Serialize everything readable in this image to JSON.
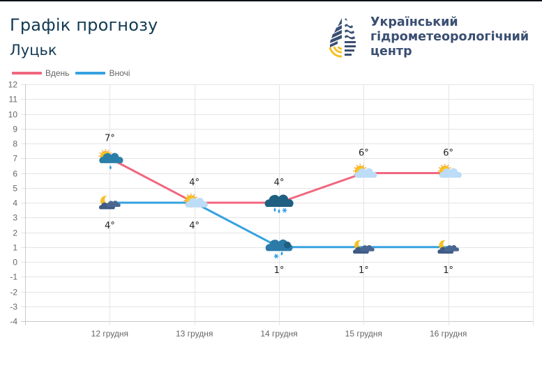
{
  "header": {
    "title": "Графік прогнозу",
    "city": "Луцьк"
  },
  "logo": {
    "line1": "Український",
    "line2": "гідрометеорологічний",
    "line3": "центр",
    "icon": "water-drop-logo-icon",
    "colors": {
      "navy": "#3a4f72",
      "yellow": "#f5c024"
    }
  },
  "legend": {
    "day_label": "Вдень",
    "night_label": "Вночі"
  },
  "colors": {
    "day": "#f0677f",
    "night": "#36a2e0",
    "grid": "#e4e4e4",
    "axis": "#c8c8c8"
  },
  "chart_data": {
    "type": "line",
    "title": "Графік прогнозу",
    "subtitle": "Луцьк",
    "categories": [
      "12 грудня",
      "13 грудня",
      "14 грудня",
      "15 грудня",
      "16 грудня"
    ],
    "series": [
      {
        "name": "Вдень",
        "color": "#f0677f",
        "values": [
          7,
          4,
          4,
          6,
          6
        ],
        "labels": [
          "7°",
          "4°",
          "4°",
          "6°",
          "6°"
        ],
        "icons": [
          "sun-cloud-rain-icon",
          "sun-cloud-icon",
          "cloud-rain-snow-icon",
          "sun-cloud-icon",
          "sun-cloud-icon"
        ]
      },
      {
        "name": "Вночі",
        "color": "#36a2e0",
        "values": [
          4,
          4,
          1,
          1,
          1
        ],
        "labels": [
          "4°",
          "4°",
          "1°",
          "1°",
          "1°"
        ],
        "icons": [
          "moon-cloud-icon",
          "sun-cloud-icon",
          "cloud-snow-rain-icon",
          "moon-cloud-icon",
          "moon-cloud-icon"
        ]
      }
    ],
    "xlabel": "",
    "ylabel": "",
    "ylim": [
      -4,
      12
    ],
    "yticks": [
      12,
      11,
      10,
      9,
      8,
      7,
      6,
      5,
      4,
      3,
      2,
      1,
      0,
      -1,
      -2,
      -3,
      -4
    ],
    "grid": true,
    "legend_position": "top-left"
  }
}
